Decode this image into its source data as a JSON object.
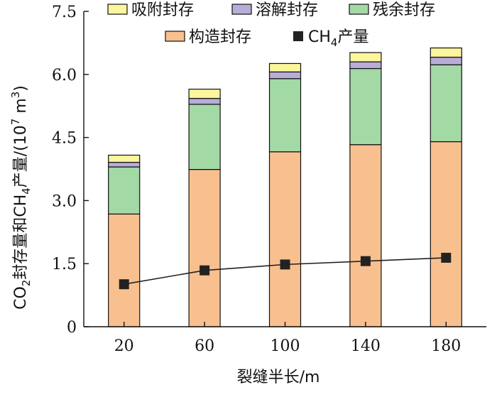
{
  "chart_data": {
    "type": "bar",
    "stacked": true,
    "categories": [
      "20",
      "60",
      "100",
      "140",
      "180"
    ],
    "xlabel": "裂缝半长/m",
    "ylabel": {
      "prefix": "CO",
      "sub1": "2",
      "middle": "封存量和CH",
      "sub2": "4",
      "suffix": "产量/(10",
      "sup": "7",
      "unit": " m",
      "sup2": "3",
      "close": ")"
    },
    "ylim": [
      0,
      7.5
    ],
    "yticks": [
      {
        "value": 0,
        "label": "0"
      },
      {
        "value": 1.5,
        "label": "1.5"
      },
      {
        "value": 3.0,
        "label": "3.0"
      },
      {
        "value": 4.5,
        "label": "4.5"
      },
      {
        "value": 6.0,
        "label": "6.0"
      },
      {
        "value": 7.5,
        "label": "7.5"
      }
    ],
    "series": [
      {
        "name": "构造封存",
        "color": "#f9c08f",
        "values": [
          2.68,
          3.74,
          4.16,
          4.33,
          4.4
        ]
      },
      {
        "name": "残余封存",
        "color": "#a3d9a5",
        "values": [
          1.12,
          1.55,
          1.74,
          1.81,
          1.83
        ]
      },
      {
        "name": "溶解封存",
        "color": "#b8acd8",
        "values": [
          0.11,
          0.14,
          0.16,
          0.16,
          0.18
        ]
      },
      {
        "name": "吸附封存",
        "color": "#fbf59b",
        "values": [
          0.17,
          0.22,
          0.2,
          0.22,
          0.22
        ]
      }
    ],
    "line_series": {
      "name": "CH",
      "name_sub": "4",
      "name_suffix": "产量",
      "color": "#222222",
      "values": [
        1.01,
        1.34,
        1.48,
        1.56,
        1.64
      ]
    },
    "legend": {
      "position": "top",
      "row1": [
        "吸附封存",
        "溶解封存",
        "残余封存"
      ],
      "row2": [
        "构造封存"
      ]
    },
    "grid": false
  }
}
